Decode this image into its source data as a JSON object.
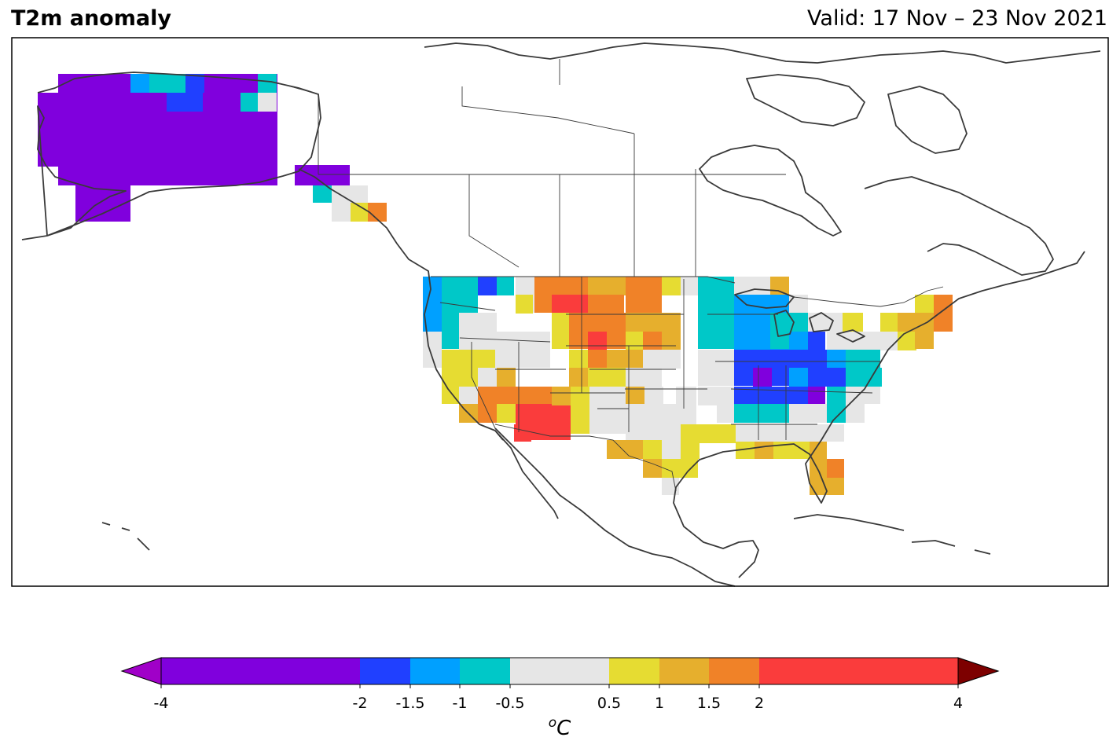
{
  "map": {
    "title": "T2m anomaly",
    "valid_label": "Valid: 17 Nov – 23 Nov 2021",
    "region": "North America",
    "grid": {
      "note": "Each row lists runs of grid cells: [start_column, end_column, color_class]. Color classes index colorbar.classes.",
      "cols": 60,
      "rows": 30,
      "cells": [
        [
          1,
          [
            [
              3,
              5,
              0
            ],
            [
              6,
              6,
              0
            ],
            [
              7,
              8,
              3
            ],
            [
              9,
              9,
              4
            ],
            [
              10,
              10,
              4
            ],
            [
              11,
              13,
              0
            ],
            [
              14,
              14,
              4
            ]
          ]
        ],
        [
          2,
          [
            [
              2,
              6,
              0
            ],
            [
              7,
              8,
              0
            ],
            [
              9,
              10,
              1
            ],
            [
              11,
              12,
              0
            ],
            [
              13,
              13,
              4
            ],
            [
              14,
              14,
              5
            ]
          ]
        ],
        [
          3,
          [
            [
              2,
              7,
              0
            ],
            [
              8,
              8,
              0
            ],
            [
              9,
              13,
              0
            ],
            [
              14,
              14,
              0
            ]
          ]
        ],
        [
          4,
          [
            [
              2,
              14,
              0
            ]
          ]
        ],
        [
          5,
          [
            [
              2,
              14,
              0
            ]
          ]
        ],
        [
          6,
          [
            [
              2,
              14,
              0
            ]
          ]
        ],
        [
          7,
          [
            [
              3,
              14,
              0
            ]
          ]
        ],
        [
          8,
          [
            [
              3,
              6,
              0
            ],
            [
              7,
              7,
              0
            ],
            [
              8,
              12,
              0
            ]
          ]
        ],
        [
          9,
          [
            [
              4,
              6,
              0
            ]
          ]
        ],
        [
          9,
          [
            [
              16,
              18,
              0
            ],
            [
              17,
              18,
              0
            ],
            [
              17,
              19,
              5
            ],
            [
              19,
              19,
              5
            ]
          ]
        ],
        [
          10,
          [
            [
              17,
              17,
              4
            ],
            [
              18,
              18,
              5
            ],
            [
              19,
              20,
              5
            ]
          ]
        ],
        [
          11,
          [
            [
              18,
              19,
              5
            ],
            [
              19,
              19,
              6
            ],
            [
              20,
              21,
              8
            ]
          ]
        ],
        [
          12,
          [
            [
              18,
              19,
              5
            ],
            [
              19,
              19,
              7
            ],
            [
              20,
              20,
              5
            ]
          ]
        ]
      ]
    }
  },
  "colorbar": {
    "unit_base": "o",
    "unit_letter": "C",
    "ticks": [
      "-4",
      "-2",
      "-1.5",
      "-1",
      "-0.5",
      "0.5",
      "1",
      "1.5",
      "2",
      "4"
    ],
    "tick_values": [
      -4,
      -2,
      -1.5,
      -1,
      -0.5,
      0.5,
      1,
      1.5,
      2,
      4
    ],
    "classes": [
      {
        "from": -4,
        "to": -2,
        "color": "#8000dd"
      },
      {
        "from": -2,
        "to": -1.5,
        "color": "#2040ff"
      },
      {
        "from": -1.5,
        "to": -1,
        "color": "#00a0ff"
      },
      {
        "from": -1,
        "to": -0.5,
        "color": "#00c8c8"
      },
      {
        "from": -0.5,
        "to": 0.5,
        "color": "#e6e6e6"
      },
      {
        "from": 0.5,
        "to": 1,
        "color": "#e6dc32"
      },
      {
        "from": 1,
        "to": 1.5,
        "color": "#e6af2d"
      },
      {
        "from": 1.5,
        "to": 2,
        "color": "#f08228"
      },
      {
        "from": 2,
        "to": 4,
        "color": "#fa3c3c"
      }
    ],
    "under_color": "#a000c8",
    "over_color": "#7d0000"
  }
}
